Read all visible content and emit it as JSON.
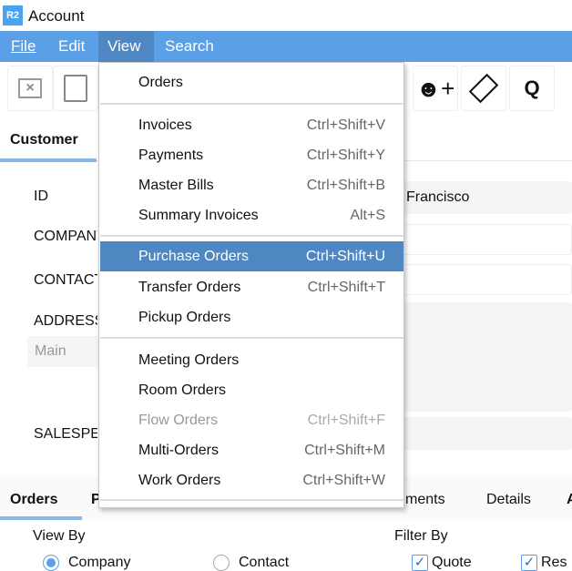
{
  "window": {
    "logo": "R2",
    "title": "Account"
  },
  "menubar": {
    "items": [
      {
        "label": "File"
      },
      {
        "label": "Edit"
      },
      {
        "label": "View"
      },
      {
        "label": "Search"
      }
    ],
    "active": "View",
    "accent": "#5b9fe6",
    "active_color": "#4f87c2"
  },
  "toolbar": {
    "icons": [
      "tag-x-icon",
      "save-icon",
      "add-user-icon",
      "ticket-icon",
      "q-icon"
    ],
    "q_label": "Q"
  },
  "customer": {
    "tab": "Customer",
    "labels": [
      "ID",
      "COMPANY",
      "CONTACT",
      "ADDRESS",
      "SALESPERSON"
    ],
    "city_value": "Francisco",
    "address_placeholder": "Main"
  },
  "view_menu": {
    "items": [
      {
        "label": "Orders",
        "shortcut": ""
      },
      {
        "label": "Invoices",
        "shortcut": "Ctrl+Shift+V"
      },
      {
        "label": "Payments",
        "shortcut": "Ctrl+Shift+Y"
      },
      {
        "label": "Master Bills",
        "shortcut": "Ctrl+Shift+B"
      },
      {
        "label": "Summary Invoices",
        "shortcut": "Alt+S"
      },
      {
        "label": "Purchase Orders",
        "shortcut": "Ctrl+Shift+U",
        "highlighted": true
      },
      {
        "label": "Transfer Orders",
        "shortcut": "Ctrl+Shift+T"
      },
      {
        "label": "Pickup Orders",
        "shortcut": ""
      },
      {
        "label": "Meeting Orders",
        "shortcut": ""
      },
      {
        "label": "Room Orders",
        "shortcut": ""
      },
      {
        "label": "Flow Orders",
        "shortcut": "Ctrl+Shift+F",
        "disabled": true
      },
      {
        "label": "Multi-Orders",
        "shortcut": "Ctrl+Shift+M"
      },
      {
        "label": "Work Orders",
        "shortcut": "Ctrl+Shift+W"
      }
    ]
  },
  "bottom": {
    "tabs": [
      "Orders",
      "P",
      "ments",
      "Details",
      "A"
    ],
    "view_by": "View By",
    "filter_by": "Filter By",
    "radios": [
      {
        "label": "Company",
        "checked": true
      },
      {
        "label": "Contact",
        "checked": false
      }
    ],
    "checks": [
      {
        "label": "Quote",
        "checked": true
      },
      {
        "label": "Res",
        "checked": true
      }
    ]
  }
}
